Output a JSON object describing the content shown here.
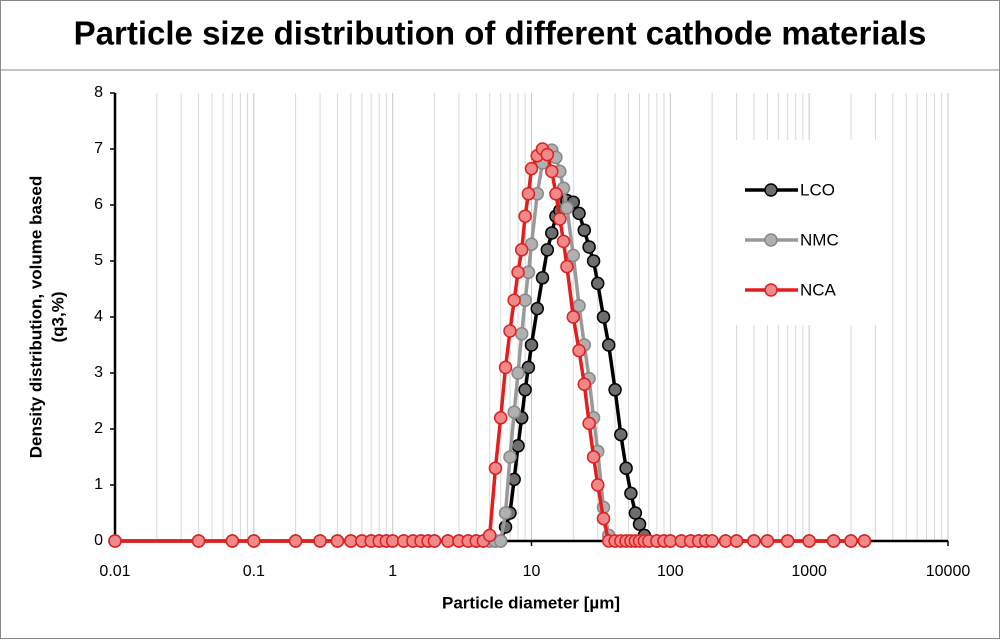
{
  "chart_data": {
    "type": "line",
    "title": "Particle size distribution of different cathode materials",
    "xlabel": "Particle diameter [µm]",
    "ylabel": [
      "Density distribution, volume based",
      "(q3,%)"
    ],
    "xscale": "log",
    "grid": "x",
    "legend": "upper right",
    "xlim": [
      0.01,
      10000
    ],
    "xticks": [
      0.01,
      0.1,
      1,
      10,
      100,
      1000,
      10000
    ],
    "ylim": [
      0,
      8
    ],
    "yticks": [
      0,
      1,
      2,
      3,
      4,
      5,
      6,
      7,
      8
    ],
    "x": [
      0.01,
      0.04,
      0.07,
      0.1,
      0.2,
      0.3,
      0.4,
      0.5,
      0.6,
      0.7,
      0.8,
      0.9,
      1,
      1.2,
      1.4,
      1.6,
      1.8,
      2,
      2.5,
      3,
      3.5,
      4,
      4.5,
      5,
      5.5,
      6,
      6.5,
      7,
      7.5,
      8,
      8.5,
      9,
      9.5,
      10,
      11,
      12,
      13,
      14,
      15,
      16,
      17,
      18,
      20,
      22,
      24,
      26,
      28,
      30,
      33,
      36,
      40,
      44,
      48,
      52,
      56,
      60,
      65,
      70,
      80,
      90,
      100,
      120,
      140,
      160,
      180,
      200,
      250,
      300,
      400,
      500,
      700,
      1000,
      1500,
      2000,
      2500
    ],
    "series": [
      {
        "name": "LCO",
        "color": "#000000",
        "marker_color": "#6e6e6e",
        "values": [
          0,
          0,
          0,
          0,
          0,
          0,
          0,
          0,
          0,
          0,
          0,
          0,
          0,
          0,
          0,
          0,
          0,
          0,
          0,
          0,
          0,
          0,
          0,
          0,
          0,
          0,
          0.25,
          0.5,
          1.1,
          1.7,
          2.2,
          2.7,
          3.1,
          3.5,
          4.15,
          4.7,
          5.2,
          5.5,
          5.8,
          5.9,
          6.05,
          6.08,
          6.05,
          5.85,
          5.55,
          5.25,
          5.0,
          4.6,
          4.0,
          3.5,
          2.7,
          1.9,
          1.3,
          0.85,
          0.5,
          0.3,
          0.1,
          0,
          0,
          0,
          0,
          0,
          0,
          0,
          0,
          0,
          0,
          0,
          0,
          0,
          0,
          0,
          0,
          0,
          0
        ]
      },
      {
        "name": "NMC",
        "color": "#999999",
        "marker_color": "#b0b0b0",
        "values": [
          0,
          0,
          0,
          0,
          0,
          0,
          0,
          0,
          0,
          0,
          0,
          0,
          0,
          0,
          0,
          0,
          0,
          0,
          0,
          0,
          0,
          0,
          0,
          0,
          0,
          0,
          0.5,
          1.5,
          2.3,
          3.0,
          3.7,
          4.3,
          4.8,
          5.3,
          6.2,
          6.75,
          6.95,
          6.98,
          6.85,
          6.6,
          6.3,
          5.95,
          5.1,
          4.2,
          3.5,
          2.9,
          2.2,
          1.6,
          0.6,
          0.1,
          0,
          0,
          0,
          0,
          0,
          0,
          0,
          0,
          0,
          0,
          0,
          0,
          0,
          0,
          0,
          0,
          0,
          0,
          0,
          0,
          0,
          0,
          0,
          0,
          0
        ]
      },
      {
        "name": "NCA",
        "color": "#e41e1e",
        "marker_color": "#f08a8a",
        "values": [
          0,
          0,
          0,
          0,
          0,
          0,
          0,
          0,
          0,
          0,
          0,
          0,
          0,
          0,
          0,
          0,
          0,
          0,
          0,
          0,
          0,
          0,
          0,
          0.1,
          1.3,
          2.2,
          3.1,
          3.75,
          4.3,
          4.8,
          5.2,
          5.8,
          6.2,
          6.65,
          6.88,
          7.0,
          6.9,
          6.6,
          6.2,
          5.75,
          5.35,
          4.9,
          4.0,
          3.4,
          2.8,
          2.1,
          1.5,
          1.0,
          0.4,
          0,
          0,
          0,
          0,
          0,
          0,
          0,
          0,
          0,
          0,
          0,
          0,
          0,
          0,
          0,
          0,
          0,
          0,
          0,
          0,
          0,
          0,
          0,
          0,
          0,
          0
        ]
      }
    ]
  }
}
